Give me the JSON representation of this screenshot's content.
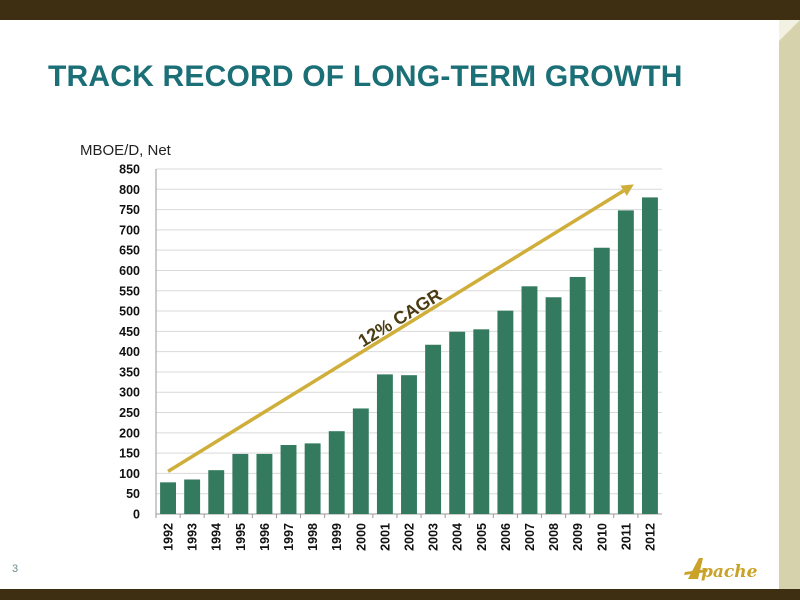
{
  "slide": {
    "title": "TRACK RECORD OF LONG-TERM GROWTH",
    "page_number": "3",
    "logo_text": "Apache"
  },
  "colors": {
    "bar": "#347a5e",
    "arrow": "#cfae3a",
    "title": "#1b6f76",
    "frame": "#3e2f12",
    "side_panel": "#d5d2ac",
    "annotation": "#4a3b10"
  },
  "chart_data": {
    "type": "bar",
    "title": "",
    "xlabel": "",
    "ylabel": "MBOE/D, Net",
    "ylim": [
      0,
      850
    ],
    "yticks": [
      0,
      50,
      100,
      150,
      200,
      250,
      300,
      350,
      400,
      450,
      500,
      550,
      600,
      650,
      700,
      750,
      800,
      850
    ],
    "grid": true,
    "categories": [
      "1992",
      "1993",
      "1994",
      "1995",
      "1996",
      "1997",
      "1998",
      "1999",
      "2000",
      "2001",
      "2002",
      "2003",
      "2004",
      "2005",
      "2006",
      "2007",
      "2008",
      "2009",
      "2010",
      "2011",
      "2012"
    ],
    "values": [
      78,
      85,
      108,
      148,
      148,
      170,
      174,
      204,
      260,
      344,
      342,
      417,
      449,
      455,
      501,
      561,
      534,
      584,
      656,
      748,
      780
    ],
    "annotation": {
      "text": "12% CAGR",
      "arrow_from": {
        "category": "1992",
        "value": 105
      },
      "arrow_to": {
        "category": "2011",
        "value": 812
      }
    }
  }
}
